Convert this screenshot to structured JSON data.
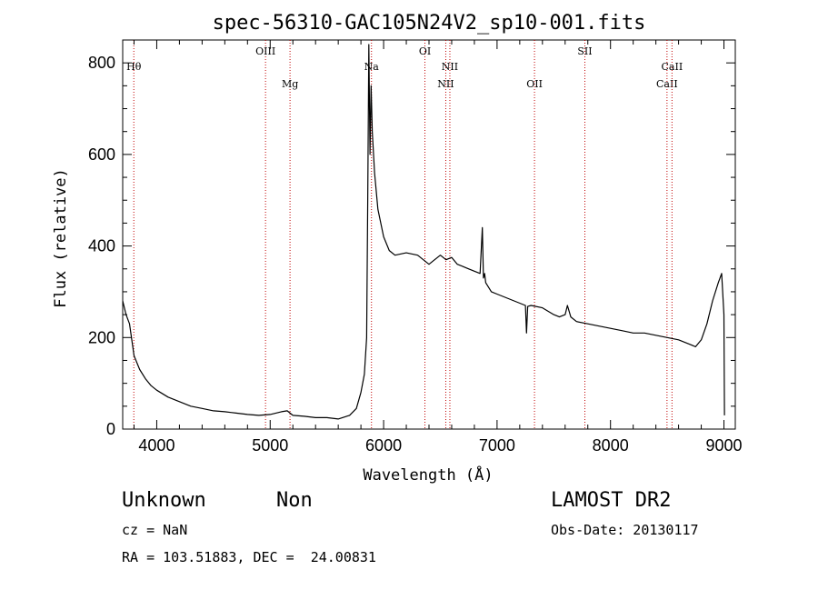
{
  "chart_data": {
    "type": "line",
    "title": "spec-56310-GAC105N24V2_sp10-001.fits",
    "xlabel": "Wavelength (Å)",
    "ylabel": "Flux (relative)",
    "xlim": [
      3700,
      9100
    ],
    "ylim": [
      0,
      850
    ],
    "xticks": [
      4000,
      5000,
      6000,
      7000,
      8000,
      9000
    ],
    "yticks": [
      0,
      200,
      400,
      600,
      800
    ],
    "grid": false,
    "line_color": "#000000",
    "marker_color": "#c00000",
    "series": [
      {
        "x": [
          3700,
          3730,
          3760,
          3800,
          3850,
          3900,
          3950,
          4000,
          4100,
          4200,
          4300,
          4400,
          4500,
          4600,
          4700,
          4800,
          4900,
          5000,
          5100,
          5150,
          5200,
          5300,
          5400,
          5500,
          5600,
          5700,
          5760,
          5800,
          5830,
          5850,
          5860,
          5870,
          5880,
          5890,
          5900,
          5920,
          5950,
          6000,
          6050,
          6100,
          6200,
          6300,
          6400,
          6450,
          6500,
          6550,
          6600,
          6650,
          6700,
          6750,
          6800,
          6850,
          6870,
          6880,
          6890,
          6900,
          6950,
          7000,
          7100,
          7200,
          7250,
          7260,
          7270,
          7300,
          7400,
          7500,
          7550,
          7600,
          7620,
          7650,
          7700,
          7800,
          7900,
          8000,
          8100,
          8200,
          8300,
          8400,
          8500,
          8600,
          8700,
          8750,
          8800,
          8850,
          8900,
          8950,
          8980,
          9000,
          9005
        ],
        "y": [
          280,
          250,
          230,
          160,
          130,
          110,
          95,
          85,
          70,
          60,
          50,
          45,
          40,
          38,
          35,
          32,
          30,
          32,
          38,
          40,
          30,
          28,
          25,
          25,
          22,
          30,
          45,
          80,
          120,
          200,
          500,
          840,
          600,
          750,
          650,
          560,
          480,
          420,
          390,
          380,
          385,
          380,
          360,
          370,
          380,
          370,
          375,
          360,
          355,
          350,
          345,
          340,
          440,
          330,
          340,
          320,
          300,
          295,
          285,
          275,
          270,
          210,
          268,
          270,
          265,
          250,
          245,
          250,
          270,
          245,
          235,
          230,
          225,
          220,
          215,
          210,
          210,
          205,
          200,
          195,
          185,
          180,
          195,
          230,
          280,
          320,
          340,
          250,
          30
        ]
      }
    ],
    "lines": [
      {
        "label": "Hθ",
        "x": 3798,
        "label_row": 1
      },
      {
        "label": "OIII",
        "x": 4959,
        "label_row": 0
      },
      {
        "label": "Mg",
        "x": 5175,
        "label_row": 2
      },
      {
        "label": "Na",
        "x": 5893,
        "label_row": 1
      },
      {
        "label": "OI",
        "x": 6364,
        "label_row": 0
      },
      {
        "label": "NII",
        "x": 6548,
        "label_row": 2
      },
      {
        "label": "NII",
        "x": 6584,
        "label_row": 1
      },
      {
        "label": "OII",
        "x": 7330,
        "label_row": 2
      },
      {
        "label": "SII",
        "x": 7774,
        "label_row": 0
      },
      {
        "label": "CaII",
        "x": 8498,
        "label_row": 2
      },
      {
        "label": "CaII",
        "x": 8542,
        "label_row": 1
      }
    ]
  },
  "info": {
    "class_label": "Unknown",
    "subclass_label": "Non",
    "survey": "LAMOST DR2",
    "redshift": "cz = NaN",
    "obs_date": "Obs-Date: 20130117",
    "coords": "RA = 103.51883, DEC =  24.00831"
  }
}
